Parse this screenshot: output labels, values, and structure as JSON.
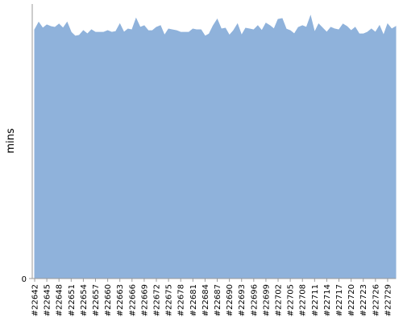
{
  "chart_data": {
    "type": "area",
    "y_label": "mins",
    "categories": [
      "#22642",
      null,
      null,
      "#22645",
      null,
      null,
      "#22648",
      null,
      null,
      "#22651",
      null,
      null,
      "#22654",
      null,
      null,
      "#22657",
      null,
      null,
      "#22660",
      null,
      null,
      "#22663",
      null,
      null,
      "#22666",
      null,
      null,
      "#22669",
      null,
      null,
      "#22672",
      null,
      null,
      "#22675",
      null,
      null,
      "#22678",
      null,
      null,
      "#22681",
      null,
      null,
      "#22684",
      null,
      null,
      "#22687",
      null,
      null,
      "#22690",
      null,
      null,
      "#22693",
      null,
      null,
      "#22696",
      null,
      null,
      "#22699",
      null,
      null,
      "#22702",
      null,
      null,
      "#22705",
      null,
      null,
      "#22708",
      null,
      null,
      "#22711",
      null,
      null,
      "#22714",
      null,
      null,
      "#22717",
      null,
      null,
      "#22720",
      null,
      null,
      "#22723",
      null,
      null,
      "#22726",
      null,
      null,
      "#22729",
      null,
      null
    ],
    "values": [
      90.6,
      93.3,
      91.2,
      92.4,
      91.8,
      91.5,
      92.7,
      91.2,
      93.3,
      89.7,
      88.3,
      88.6,
      90.3,
      89.1,
      90.6,
      89.7,
      89.7,
      89.7,
      90.3,
      89.7,
      90.0,
      92.7,
      89.7,
      90.9,
      90.6,
      94.7,
      91.5,
      92.1,
      90.3,
      90.3,
      91.5,
      92.1,
      88.6,
      90.9,
      90.6,
      90.3,
      89.7,
      89.7,
      89.7,
      90.9,
      90.6,
      90.6,
      88.3,
      89.1,
      92.1,
      94.4,
      90.9,
      91.2,
      88.6,
      90.3,
      92.7,
      88.6,
      91.2,
      90.9,
      90.6,
      92.1,
      90.3,
      93.0,
      92.1,
      90.9,
      94.4,
      94.7,
      90.9,
      90.3,
      89.1,
      91.5,
      92.1,
      91.5,
      95.6,
      89.7,
      92.7,
      91.2,
      89.7,
      91.5,
      90.9,
      90.6,
      92.7,
      91.8,
      90.3,
      91.5,
      89.1,
      89.1,
      89.7,
      90.9,
      89.7,
      92.1,
      88.6,
      92.7,
      90.9,
      91.8
    ],
    "color": "#8fb2db",
    "ylim": [
      0,
      100
    ],
    "yticks": [
      0
    ]
  }
}
